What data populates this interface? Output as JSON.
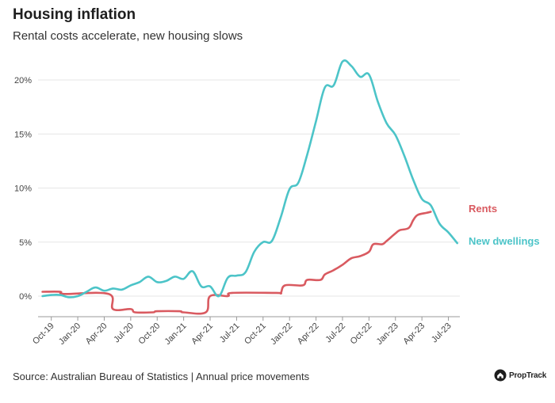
{
  "title": "Housing inflation",
  "subtitle": "Rental costs accelerate, new housing slows",
  "source": "Source: Australian Bureau of Statistics | Annual price movements",
  "brand": {
    "name": "PropTrack",
    "icon": "house-logo-icon"
  },
  "colors": {
    "rents": "#d95a60",
    "new_dwellings": "#4cc4c8",
    "grid": "#e6e6e6",
    "axis": "#999999"
  },
  "chart_data": {
    "type": "line",
    "title": "Housing inflation",
    "subtitle": "Rental costs accelerate, new housing slows",
    "ylim": [
      -2,
      22
    ],
    "yticks": [
      0,
      5,
      10,
      15,
      20
    ],
    "ytick_labels": [
      "0%",
      "5%",
      "10%",
      "15%",
      "20%"
    ],
    "grid": "horizontal",
    "xticks": [
      {
        "label": "Oct-19",
        "x": 1
      },
      {
        "label": "Jan-20",
        "x": 4
      },
      {
        "label": "Apr-20",
        "x": 7
      },
      {
        "label": "Jul-20",
        "x": 10
      },
      {
        "label": "Oct-20",
        "x": 13
      },
      {
        "label": "Jan-21",
        "x": 16
      },
      {
        "label": "Apr-21",
        "x": 19
      },
      {
        "label": "Jul-21",
        "x": 22
      },
      {
        "label": "Oct-21",
        "x": 25
      },
      {
        "label": "Jan-22",
        "x": 28
      },
      {
        "label": "Apr-22",
        "x": 31
      },
      {
        "label": "Jul-22",
        "x": 34
      },
      {
        "label": "Oct-22",
        "x": 37
      },
      {
        "label": "Jan-23",
        "x": 40
      },
      {
        "label": "Apr-23",
        "x": 43
      },
      {
        "label": "Jul-23",
        "x": 46
      }
    ],
    "series": [
      {
        "name": "Rents",
        "label": "Rents",
        "color": "#d95a60",
        "points": [
          [
            0,
            0.4
          ],
          [
            2,
            0.4
          ],
          [
            2.5,
            0.2
          ],
          [
            7.5,
            0.2
          ],
          [
            8,
            -1.2
          ],
          [
            10,
            -1.2
          ],
          [
            10.5,
            -1.5
          ],
          [
            12.5,
            -1.5
          ],
          [
            13,
            -1.4
          ],
          [
            15.5,
            -1.4
          ],
          [
            16,
            -1.5
          ],
          [
            18.5,
            -1.5
          ],
          [
            19,
            0
          ],
          [
            21,
            0
          ],
          [
            21.5,
            0.3
          ],
          [
            26.5,
            0.3
          ],
          [
            27,
            0.3
          ],
          [
            27.5,
            1.0
          ],
          [
            29.5,
            1.0
          ],
          [
            30,
            1.5
          ],
          [
            31.5,
            1.5
          ],
          [
            32,
            2.0
          ],
          [
            33,
            2.4
          ],
          [
            34,
            2.9
          ],
          [
            35,
            3.5
          ],
          [
            36,
            3.7
          ],
          [
            37,
            4.1
          ],
          [
            37.5,
            4.8
          ],
          [
            38.5,
            4.8
          ],
          [
            39,
            5.1
          ],
          [
            40,
            5.8
          ],
          [
            40.5,
            6.1
          ],
          [
            41.5,
            6.3
          ],
          [
            42,
            7.0
          ],
          [
            42.5,
            7.5
          ],
          [
            43.5,
            7.7
          ],
          [
            44,
            7.8
          ]
        ]
      },
      {
        "name": "New dwellings",
        "label": "New dwellings",
        "color": "#4cc4c8",
        "points": [
          [
            0,
            0
          ],
          [
            1,
            0.1
          ],
          [
            2,
            0.1
          ],
          [
            3,
            -0.1
          ],
          [
            4,
            0
          ],
          [
            5,
            0.4
          ],
          [
            6,
            0.8
          ],
          [
            7,
            0.5
          ],
          [
            8,
            0.7
          ],
          [
            9,
            0.6
          ],
          [
            10,
            1.0
          ],
          [
            11,
            1.3
          ],
          [
            12,
            1.8
          ],
          [
            13,
            1.3
          ],
          [
            14,
            1.4
          ],
          [
            15,
            1.8
          ],
          [
            16,
            1.6
          ],
          [
            17,
            2.3
          ],
          [
            18,
            0.9
          ],
          [
            19,
            0.9
          ],
          [
            20,
            0
          ],
          [
            21,
            1.7
          ],
          [
            22,
            1.9
          ],
          [
            23,
            2.2
          ],
          [
            24,
            4.1
          ],
          [
            25,
            5.0
          ],
          [
            26,
            5.1
          ],
          [
            27,
            7.3
          ],
          [
            28,
            9.9
          ],
          [
            29,
            10.5
          ],
          [
            30,
            13.1
          ],
          [
            31,
            16.2
          ],
          [
            32,
            19.3
          ],
          [
            33,
            19.5
          ],
          [
            34,
            21.7
          ],
          [
            35,
            21.3
          ],
          [
            36,
            20.3
          ],
          [
            37,
            20.5
          ],
          [
            38,
            18.0
          ],
          [
            39,
            16.0
          ],
          [
            40,
            14.9
          ],
          [
            41,
            13.0
          ],
          [
            42,
            10.8
          ],
          [
            43,
            9.0
          ],
          [
            44,
            8.4
          ],
          [
            45,
            6.7
          ],
          [
            46,
            5.9
          ],
          [
            47,
            4.9
          ]
        ]
      }
    ]
  }
}
